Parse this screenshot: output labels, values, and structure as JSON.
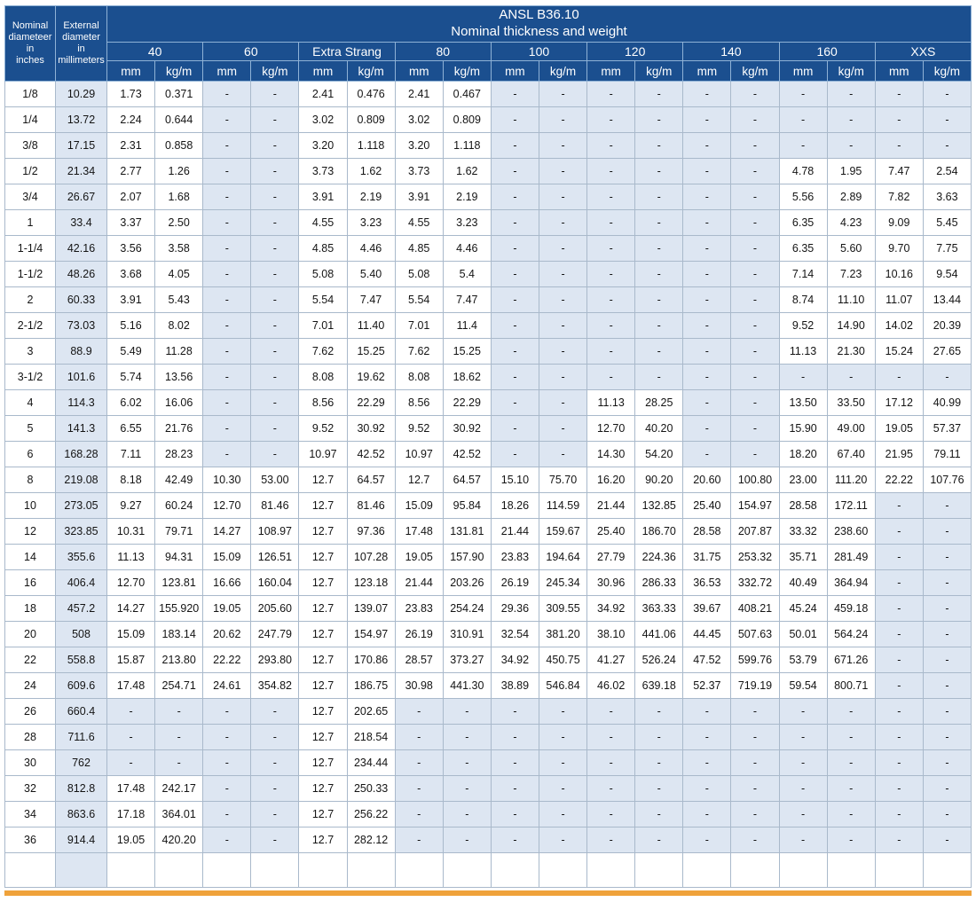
{
  "colors": {
    "header_bg": "#1b4f8f",
    "header_border": "#8fb2d6",
    "shaded_cell": "#dde6f2",
    "cell_border": "#a9b9cb",
    "accent_bar": "#efa23b",
    "text": "#141414"
  },
  "table": {
    "title1": "ANSL B36.10",
    "title2": "Nominal thickness and weight",
    "nominal_header": "Nominal\ndiameteer\nin\ninches",
    "external_header": "External\ndiameter\nin\nmillimeters",
    "groups": [
      "40",
      "60",
      "Extra Strang",
      "80",
      "100",
      "120",
      "140",
      "160",
      "XXS"
    ],
    "units": [
      "mm",
      "kg/m"
    ],
    "rows": [
      {
        "size": "1/8",
        "ext": "10.29",
        "v": [
          "1.73",
          "0.371",
          "-",
          "-",
          "2.41",
          "0.476",
          "2.41",
          "0.467",
          "-",
          "-",
          "-",
          "-",
          "-",
          "-",
          "-",
          "-",
          "-",
          "-"
        ]
      },
      {
        "size": "1/4",
        "ext": "13.72",
        "v": [
          "2.24",
          "0.644",
          "-",
          "-",
          "3.02",
          "0.809",
          "3.02",
          "0.809",
          "-",
          "-",
          "-",
          "-",
          "-",
          "-",
          "-",
          "-",
          "-",
          "-"
        ]
      },
      {
        "size": "3/8",
        "ext": "17.15",
        "v": [
          "2.31",
          "0.858",
          "-",
          "-",
          "3.20",
          "1.118",
          "3.20",
          "1.118",
          "-",
          "-",
          "-",
          "-",
          "-",
          "-",
          "-",
          "-",
          "-",
          "-"
        ]
      },
      {
        "size": "1/2",
        "ext": "21.34",
        "v": [
          "2.77",
          "1.26",
          "-",
          "-",
          "3.73",
          "1.62",
          "3.73",
          "1.62",
          "-",
          "-",
          "-",
          "-",
          "-",
          "-",
          "4.78",
          "1.95",
          "7.47",
          "2.54"
        ]
      },
      {
        "size": "3/4",
        "ext": "26.67",
        "v": [
          "2.07",
          "1.68",
          "-",
          "-",
          "3.91",
          "2.19",
          "3.91",
          "2.19",
          "-",
          "-",
          "-",
          "-",
          "-",
          "-",
          "5.56",
          "2.89",
          "7.82",
          "3.63"
        ]
      },
      {
        "size": "1",
        "ext": "33.4",
        "v": [
          "3.37",
          "2.50",
          "-",
          "-",
          "4.55",
          "3.23",
          "4.55",
          "3.23",
          "-",
          "-",
          "-",
          "-",
          "-",
          "-",
          "6.35",
          "4.23",
          "9.09",
          "5.45"
        ]
      },
      {
        "size": "1-1/4",
        "ext": "42.16",
        "v": [
          "3.56",
          "3.58",
          "-",
          "-",
          "4.85",
          "4.46",
          "4.85",
          "4.46",
          "-",
          "-",
          "-",
          "-",
          "-",
          "-",
          "6.35",
          "5.60",
          "9.70",
          "7.75"
        ]
      },
      {
        "size": "1-1/2",
        "ext": "48.26",
        "v": [
          "3.68",
          "4.05",
          "-",
          "-",
          "5.08",
          "5.40",
          "5.08",
          "5.4",
          "-",
          "-",
          "-",
          "-",
          "-",
          "-",
          "7.14",
          "7.23",
          "10.16",
          "9.54"
        ]
      },
      {
        "size": "2",
        "ext": "60.33",
        "v": [
          "3.91",
          "5.43",
          "-",
          "-",
          "5.54",
          "7.47",
          "5.54",
          "7.47",
          "-",
          "-",
          "-",
          "-",
          "-",
          "-",
          "8.74",
          "11.10",
          "11.07",
          "13.44"
        ]
      },
      {
        "size": "2-1/2",
        "ext": "73.03",
        "v": [
          "5.16",
          "8.02",
          "-",
          "-",
          "7.01",
          "11.40",
          "7.01",
          "11.4",
          "-",
          "-",
          "-",
          "-",
          "-",
          "-",
          "9.52",
          "14.90",
          "14.02",
          "20.39"
        ]
      },
      {
        "size": "3",
        "ext": "88.9",
        "v": [
          "5.49",
          "11.28",
          "-",
          "-",
          "7.62",
          "15.25",
          "7.62",
          "15.25",
          "-",
          "-",
          "-",
          "-",
          "-",
          "-",
          "11.13",
          "21.30",
          "15.24",
          "27.65"
        ]
      },
      {
        "size": "3-1/2",
        "ext": "101.6",
        "v": [
          "5.74",
          "13.56",
          "-",
          "-",
          "8.08",
          "19.62",
          "8.08",
          "18.62",
          "-",
          "-",
          "-",
          "-",
          "-",
          "-",
          "-",
          "-",
          "-",
          "-"
        ]
      },
      {
        "size": "4",
        "ext": "114.3",
        "v": [
          "6.02",
          "16.06",
          "-",
          "-",
          "8.56",
          "22.29",
          "8.56",
          "22.29",
          "-",
          "-",
          "11.13",
          "28.25",
          "-",
          "-",
          "13.50",
          "33.50",
          "17.12",
          "40.99"
        ]
      },
      {
        "size": "5",
        "ext": "141.3",
        "v": [
          "6.55",
          "21.76",
          "-",
          "-",
          "9.52",
          "30.92",
          "9.52",
          "30.92",
          "-",
          "-",
          "12.70",
          "40.20",
          "-",
          "-",
          "15.90",
          "49.00",
          "19.05",
          "57.37"
        ]
      },
      {
        "size": "6",
        "ext": "168.28",
        "v": [
          "7.11",
          "28.23",
          "-",
          "-",
          "10.97",
          "42.52",
          "10.97",
          "42.52",
          "-",
          "-",
          "14.30",
          "54.20",
          "-",
          "-",
          "18.20",
          "67.40",
          "21.95",
          "79.11"
        ]
      },
      {
        "size": "8",
        "ext": "219.08",
        "v": [
          "8.18",
          "42.49",
          "10.30",
          "53.00",
          "12.7",
          "64.57",
          "12.7",
          "64.57",
          "15.10",
          "75.70",
          "16.20",
          "90.20",
          "20.60",
          "100.80",
          "23.00",
          "111.20",
          "22.22",
          "107.76"
        ]
      },
      {
        "size": "10",
        "ext": "273.05",
        "v": [
          "9.27",
          "60.24",
          "12.70",
          "81.46",
          "12.7",
          "81.46",
          "15.09",
          "95.84",
          "18.26",
          "114.59",
          "21.44",
          "132.85",
          "25.40",
          "154.97",
          "28.58",
          "172.11",
          "-",
          "-"
        ]
      },
      {
        "size": "12",
        "ext": "323.85",
        "v": [
          "10.31",
          "79.71",
          "14.27",
          "108.97",
          "12.7",
          "97.36",
          "17.48",
          "131.81",
          "21.44",
          "159.67",
          "25.40",
          "186.70",
          "28.58",
          "207.87",
          "33.32",
          "238.60",
          "-",
          "-"
        ]
      },
      {
        "size": "14",
        "ext": "355.6",
        "v": [
          "11.13",
          "94.31",
          "15.09",
          "126.51",
          "12.7",
          "107.28",
          "19.05",
          "157.90",
          "23.83",
          "194.64",
          "27.79",
          "224.36",
          "31.75",
          "253.32",
          "35.71",
          "281.49",
          "-",
          "-"
        ]
      },
      {
        "size": "16",
        "ext": "406.4",
        "v": [
          "12.70",
          "123.81",
          "16.66",
          "160.04",
          "12.7",
          "123.18",
          "21.44",
          "203.26",
          "26.19",
          "245.34",
          "30.96",
          "286.33",
          "36.53",
          "332.72",
          "40.49",
          "364.94",
          "-",
          "-"
        ]
      },
      {
        "size": "18",
        "ext": "457.2",
        "v": [
          "14.27",
          "155.920",
          "19.05",
          "205.60",
          "12.7",
          "139.07",
          "23.83",
          "254.24",
          "29.36",
          "309.55",
          "34.92",
          "363.33",
          "39.67",
          "408.21",
          "45.24",
          "459.18",
          "-",
          "-"
        ]
      },
      {
        "size": "20",
        "ext": "508",
        "v": [
          "15.09",
          "183.14",
          "20.62",
          "247.79",
          "12.7",
          "154.97",
          "26.19",
          "310.91",
          "32.54",
          "381.20",
          "38.10",
          "441.06",
          "44.45",
          "507.63",
          "50.01",
          "564.24",
          "-",
          "-"
        ]
      },
      {
        "size": "22",
        "ext": "558.8",
        "v": [
          "15.87",
          "213.80",
          "22.22",
          "293.80",
          "12.7",
          "170.86",
          "28.57",
          "373.27",
          "34.92",
          "450.75",
          "41.27",
          "526.24",
          "47.52",
          "599.76",
          "53.79",
          "671.26",
          "-",
          "-"
        ]
      },
      {
        "size": "24",
        "ext": "609.6",
        "v": [
          "17.48",
          "254.71",
          "24.61",
          "354.82",
          "12.7",
          "186.75",
          "30.98",
          "441.30",
          "38.89",
          "546.84",
          "46.02",
          "639.18",
          "52.37",
          "719.19",
          "59.54",
          "800.71",
          "-",
          "-"
        ]
      },
      {
        "size": "26",
        "ext": "660.4",
        "v": [
          "-",
          "-",
          "-",
          "-",
          "12.7",
          "202.65",
          "-",
          "-",
          "-",
          "-",
          "-",
          "-",
          "-",
          "-",
          "-",
          "-",
          "-",
          "-"
        ]
      },
      {
        "size": "28",
        "ext": "711.6",
        "v": [
          "-",
          "-",
          "-",
          "-",
          "12.7",
          "218.54",
          "-",
          "-",
          "-",
          "-",
          "-",
          "-",
          "-",
          "-",
          "-",
          "-",
          "-",
          "-"
        ]
      },
      {
        "size": "30",
        "ext": "762",
        "v": [
          "-",
          "-",
          "-",
          "-",
          "12.7",
          "234.44",
          "-",
          "-",
          "-",
          "-",
          "-",
          "-",
          "-",
          "-",
          "-",
          "-",
          "-",
          "-"
        ]
      },
      {
        "size": "32",
        "ext": "812.8",
        "v": [
          "17.48",
          "242.17",
          "-",
          "-",
          "12.7",
          "250.33",
          "-",
          "-",
          "-",
          "-",
          "-",
          "-",
          "-",
          "-",
          "-",
          "-",
          "-",
          "-"
        ]
      },
      {
        "size": "34",
        "ext": "863.6",
        "v": [
          "17.18",
          "364.01",
          "-",
          "-",
          "12.7",
          "256.22",
          "-",
          "-",
          "-",
          "-",
          "-",
          "-",
          "-",
          "-",
          "-",
          "-",
          "-",
          "-"
        ]
      },
      {
        "size": "36",
        "ext": "914.4",
        "v": [
          "19.05",
          "420.20",
          "-",
          "-",
          "12.7",
          "282.12",
          "-",
          "-",
          "-",
          "-",
          "-",
          "-",
          "-",
          "-",
          "-",
          "-",
          "-",
          "-"
        ]
      }
    ]
  }
}
